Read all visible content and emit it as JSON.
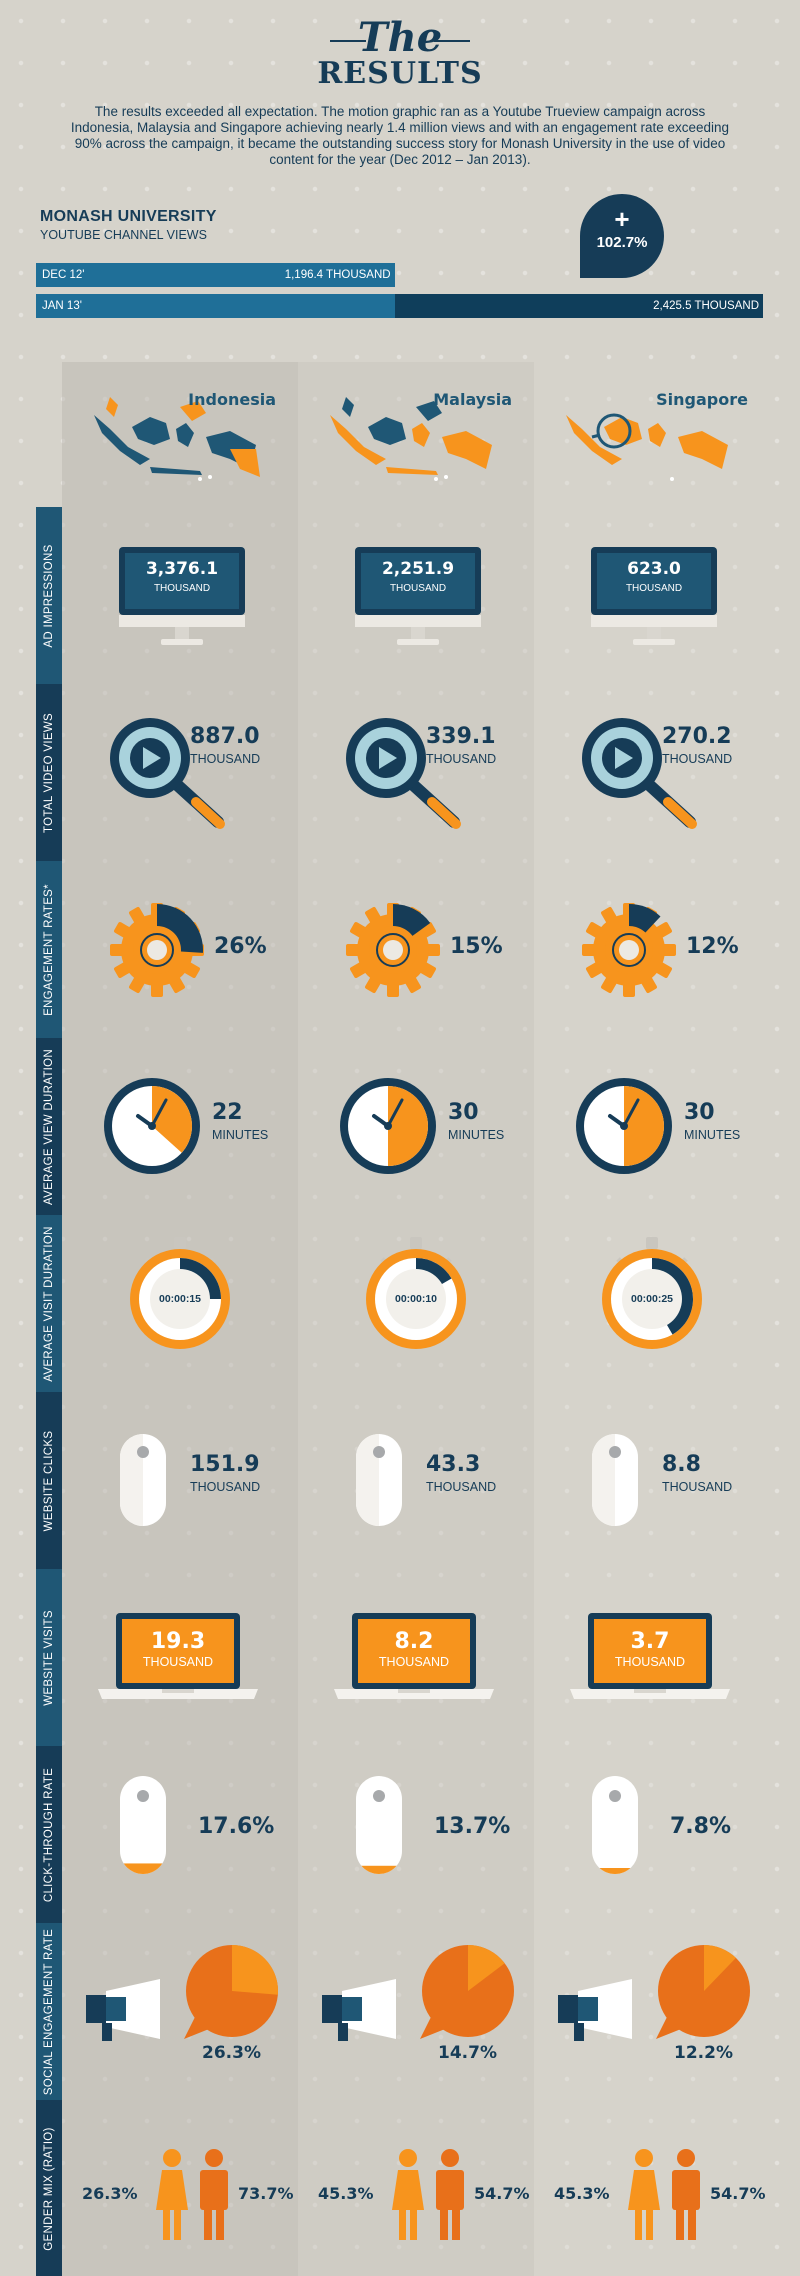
{
  "header": {
    "title_the": "The",
    "title_results": "RESULTS",
    "intro": "The results exceeded all expectation. The motion graphic ran as a Youtube Trueview campaign across Indonesia, Malaysia and Singapore achieving nearly 1.4 million views and with an engagement rate exceeding 90% across the campaign, it became the outstanding success story for Monash University in the use of video content for the year (Dec 2012 – Jan 2013)."
  },
  "youtube": {
    "title": "MONASH UNIVERSITY",
    "subtitle": "YOUTUBE CHANNEL VIEWS",
    "badge_plus": "+",
    "badge_value": "102.7%",
    "bars": [
      {
        "label": "DEC 12'",
        "value_text": "1,196.4 THOUSAND",
        "value": 1196.4
      },
      {
        "label": "JAN 13'",
        "value_text": "2,425.5 THOUSAND",
        "value": 2425.5
      }
    ]
  },
  "countries": [
    "Indonesia",
    "Malaysia",
    "Singapore"
  ],
  "rows": {
    "ad_impressions": {
      "label": "AD IMPRESSIONS",
      "values": [
        "3,376.1",
        "2,251.9",
        "623.0"
      ],
      "unit": "THOUSAND"
    },
    "total_video_views": {
      "label": "TOTAL VIDEO VIEWS",
      "values": [
        "887.0",
        "339.1",
        "270.2"
      ],
      "unit": "THOUSAND"
    },
    "engagement_rates": {
      "label": "ENGAGEMENT RATES*",
      "values": [
        "26%",
        "15%",
        "12%"
      ],
      "fractions": [
        0.26,
        0.15,
        0.12
      ]
    },
    "avg_view_duration": {
      "label": "AVERAGE VIEW DURATION",
      "values": [
        "22",
        "30",
        "30"
      ],
      "unit": "MINUTES"
    },
    "avg_visit_duration": {
      "label": "AVERAGE VISIT DURATION",
      "values": [
        "00:00:15",
        "00:00:10",
        "00:00:25"
      ]
    },
    "website_clicks": {
      "label": "WEBSITE CLICKS",
      "values": [
        "151.9",
        "43.3",
        "8.8"
      ],
      "unit": "THOUSAND"
    },
    "website_visits": {
      "label": "WEBSITE VISITS",
      "values": [
        "19.3",
        "8.2",
        "3.7"
      ],
      "unit": "THOUSAND"
    },
    "click_through_rate": {
      "label": "CLICK-THROUGH RATE",
      "values": [
        "17.6%",
        "13.7%",
        "7.8%"
      ],
      "fractions": [
        0.176,
        0.137,
        0.078
      ]
    },
    "social_engagement_rate": {
      "label": "SOCIAL ENGAGEMENT RATE",
      "values": [
        "26.3%",
        "14.7%",
        "12.2%"
      ],
      "fractions": [
        0.263,
        0.147,
        0.122
      ]
    },
    "gender_mix": {
      "label": "GENDER MIX (RATIO)",
      "female": [
        "26.3%",
        "45.3%",
        "45.3%"
      ],
      "male": [
        "73.7%",
        "54.7%",
        "54.7%"
      ]
    }
  },
  "colors": {
    "navy": "#163c57",
    "blue": "#1f5775",
    "orange": "#f7941d",
    "dark_orange": "#e8701a"
  }
}
